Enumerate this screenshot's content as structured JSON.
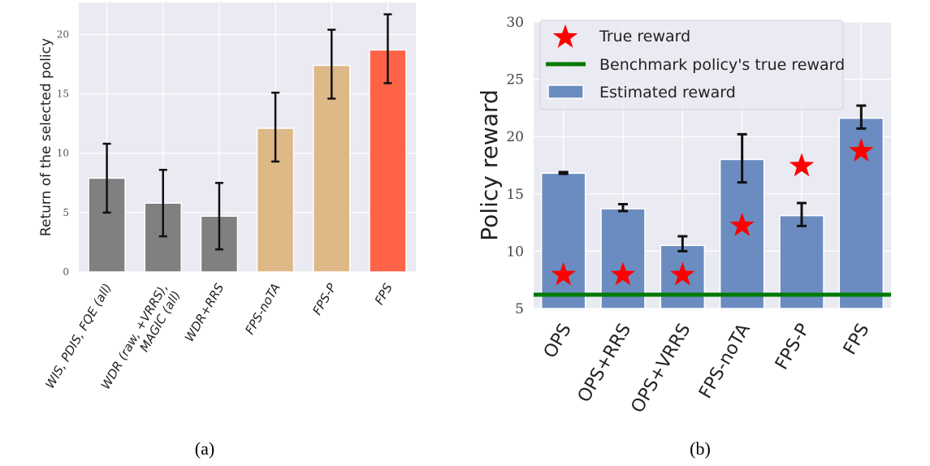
{
  "chart_data": [
    {
      "type": "bar",
      "panel_label": "(a)",
      "title": "",
      "xlabel": "",
      "ylabel": "Return of the selected policy",
      "ylim": [
        0,
        22.7
      ],
      "yticks": [
        0,
        5,
        10,
        15,
        20
      ],
      "grid": true,
      "categories": [
        [
          "WIS, PDIS, FQE (all)"
        ],
        [
          "WDR (raw, +VRRS),",
          "MAGIC (all)"
        ],
        [
          "WDR+RRS"
        ],
        [
          "FPS-noTA"
        ],
        [
          "FPS-P"
        ],
        [
          "FPS"
        ]
      ],
      "values": [
        7.9,
        5.8,
        4.7,
        12.1,
        17.4,
        18.7
      ],
      "error_low": [
        5.0,
        3.0,
        1.9,
        9.3,
        14.6,
        15.9
      ],
      "error_high": [
        10.8,
        8.6,
        7.5,
        15.1,
        20.4,
        21.7
      ],
      "colors": [
        "#808080",
        "#808080",
        "#808080",
        "#deb887",
        "#deb887",
        "#ff6347"
      ]
    },
    {
      "type": "bar",
      "panel_label": "(b)",
      "title": "",
      "xlabel": "",
      "ylabel": "Policy reward",
      "ylim": [
        5,
        30
      ],
      "yticks": [
        5,
        10,
        15,
        20,
        25,
        30
      ],
      "grid": true,
      "legend_position": "top-left",
      "categories": [
        "OPS",
        "OPS+RRS",
        "OPS+VRRS",
        "FPS-noTA",
        "FPS-P",
        "FPS"
      ],
      "series": [
        {
          "name": "Estimated reward",
          "kind": "bar",
          "color": "#6b8cc0",
          "values": [
            16.8,
            13.7,
            10.5,
            18.0,
            13.1,
            21.6
          ],
          "error_low": [
            16.75,
            13.5,
            10.0,
            16.0,
            12.2,
            20.7
          ],
          "error_high": [
            16.9,
            14.1,
            11.3,
            20.2,
            14.2,
            22.7
          ]
        },
        {
          "name": "True reward",
          "kind": "star",
          "color": "#ff0000",
          "values": [
            8.0,
            8.0,
            8.0,
            12.3,
            17.5,
            18.8
          ]
        },
        {
          "name": "Benchmark policy's true reward",
          "kind": "hline",
          "color": "#007a00",
          "value": 6.2
        }
      ],
      "legend": [
        "True reward",
        "Benchmark policy's true reward",
        "Estimated reward"
      ]
    }
  ]
}
